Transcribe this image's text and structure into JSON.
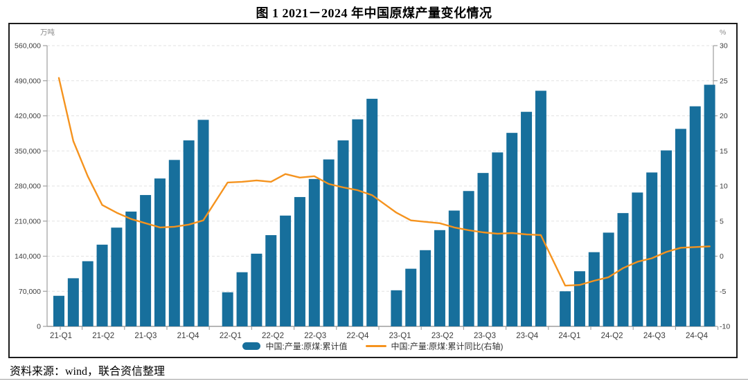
{
  "title": "图 1  2021－2024 年中国原煤产量变化情况",
  "source_note": "资料来源：wind，联合资信整理",
  "colors": {
    "bar": "#176F9C",
    "line": "#F5931E",
    "grid": "#E2E2E2",
    "axis": "#9E9E9E",
    "tick_text": "#3C3C3C",
    "unit_text": "#8A8A8A"
  },
  "legend": {
    "bar_label": "中国:产量:原煤:累计值",
    "line_label": "中国:产量:原煤:累计同比(右轴)"
  },
  "chart_data": {
    "type": "bar+line combo",
    "x": [
      "2021-02",
      "2021-03",
      "2021-04",
      "2021-05",
      "2021-06",
      "2021-07",
      "2021-08",
      "2021-09",
      "2021-10",
      "2021-11",
      "2021-12",
      "2022-02",
      "2022-03",
      "2022-04",
      "2022-05",
      "2022-06",
      "2022-07",
      "2022-08",
      "2022-09",
      "2022-10",
      "2022-11",
      "2022-12",
      "2023-02",
      "2023-03",
      "2023-04",
      "2023-05",
      "2023-06",
      "2023-07",
      "2023-08",
      "2023-09",
      "2023-10",
      "2023-11",
      "2023-12",
      "2024-02",
      "2024-03",
      "2024-04",
      "2024-05",
      "2024-06",
      "2024-07",
      "2024-08",
      "2024-09",
      "2024-10",
      "2024-11",
      "2024-12"
    ],
    "quarter_labels": [
      "21-Q1",
      "21-Q2",
      "21-Q3",
      "21-Q4",
      "22-Q1",
      "22-Q2",
      "22-Q3",
      "22-Q4",
      "23-Q1",
      "23-Q2",
      "23-Q3",
      "23-Q4",
      "24-Q1",
      "24-Q2",
      "24-Q3",
      "24-Q4"
    ],
    "series": [
      {
        "name": "中国:产量:原煤:累计值",
        "type": "bar",
        "axis": "left",
        "values": [
          61000,
          96000,
          130000,
          163000,
          197000,
          229000,
          262000,
          295000,
          332000,
          371000,
          412000,
          68000,
          108000,
          145000,
          182000,
          221000,
          258000,
          294000,
          333000,
          371000,
          413000,
          454000,
          72000,
          115000,
          152000,
          192000,
          231000,
          270000,
          306000,
          347000,
          386000,
          428000,
          470000,
          70000,
          110000,
          148000,
          187000,
          226000,
          267000,
          307000,
          351000,
          394000,
          439000,
          482000
        ]
      },
      {
        "name": "中国:产量:原煤:累计同比(右轴)",
        "type": "line",
        "axis": "right",
        "values": [
          25.4,
          16.4,
          11.4,
          7.3,
          6.2,
          5.3,
          4.7,
          4.1,
          4.2,
          4.5,
          5.1,
          10.5,
          10.6,
          10.8,
          10.6,
          11.7,
          11.2,
          11.4,
          10.3,
          9.8,
          9.4,
          8.7,
          6.2,
          5.1,
          4.9,
          4.7,
          4.1,
          3.7,
          3.4,
          3.2,
          3.3,
          3.1,
          3.0,
          -4.2,
          -4.1,
          -3.5,
          -3.0,
          -1.7,
          -0.8,
          -0.3,
          0.6,
          1.2,
          1.3,
          1.4
        ]
      }
    ],
    "left_axis": {
      "label": "万吨",
      "min": 0,
      "max": 560000,
      "step": 70000,
      "ticks": [
        "0",
        "70,000",
        "140,000",
        "210,000",
        "280,000",
        "350,000",
        "420,000",
        "490,000",
        "560,000"
      ]
    },
    "right_axis": {
      "label": "%",
      "min": -10,
      "max": 30,
      "step": 5,
      "ticks": [
        "-10",
        "-5",
        "0",
        "5",
        "10",
        "15",
        "20",
        "25",
        "30"
      ]
    },
    "grid": "horizontal dashed",
    "legend_position": "bottom-center"
  }
}
